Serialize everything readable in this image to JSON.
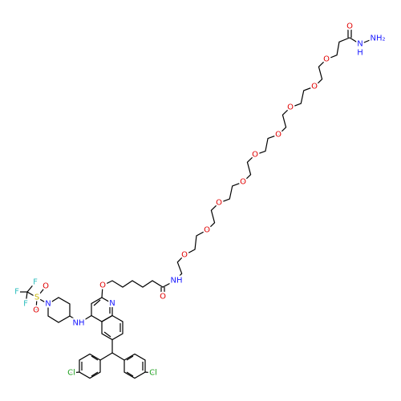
{
  "atoms": [
    {
      "label": "O"
    },
    {
      "label": "N"
    },
    {
      "label": "H"
    },
    {
      "label": "NH₂"
    },
    {
      "label": "O"
    },
    {
      "label": "O"
    },
    {
      "label": "O"
    },
    {
      "label": "O"
    },
    {
      "label": "O"
    },
    {
      "label": "O"
    },
    {
      "label": "O"
    },
    {
      "label": "O"
    },
    {
      "label": "O"
    },
    {
      "label": "NH"
    },
    {
      "label": "O"
    },
    {
      "label": "O"
    },
    {
      "label": "N"
    },
    {
      "label": "NH"
    },
    {
      "label": "N"
    },
    {
      "label": "S"
    },
    {
      "label": "O"
    },
    {
      "label": "O"
    },
    {
      "label": "F"
    },
    {
      "label": "F"
    },
    {
      "label": "F"
    },
    {
      "label": "Cl"
    },
    {
      "label": "Cl"
    }
  ]
}
